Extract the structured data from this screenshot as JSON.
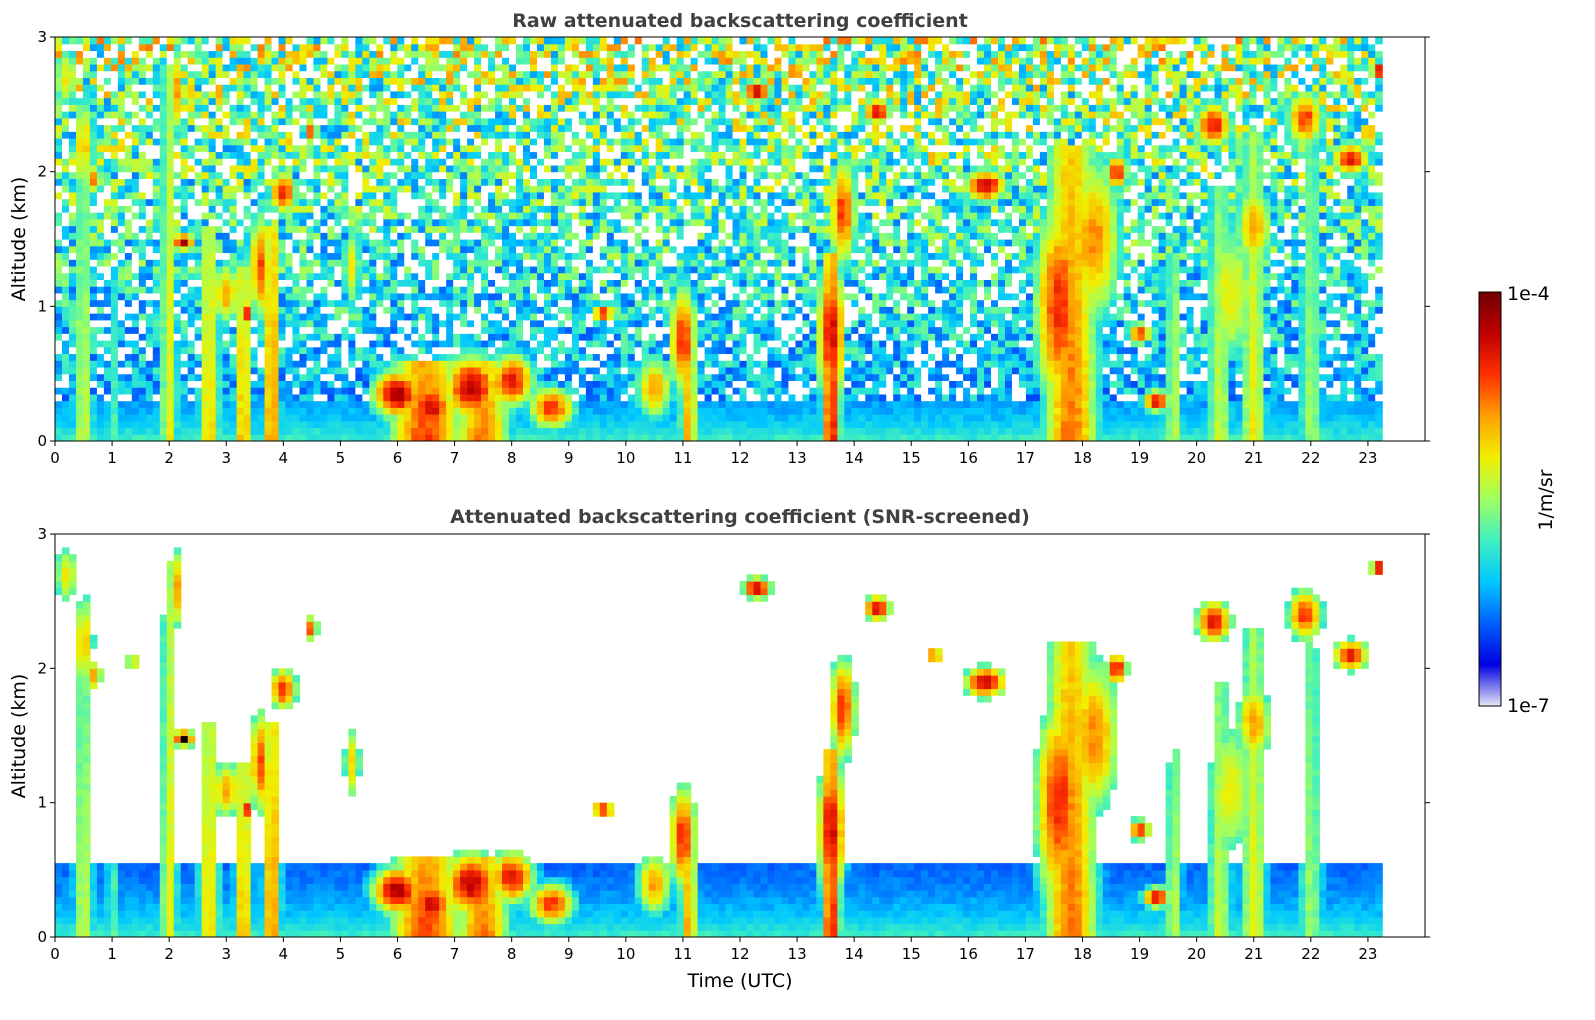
{
  "colorbar": {
    "label": "1/m/sr",
    "max_label": "1e-4",
    "min_label": "1e-7",
    "colormap": [
      "#e6e6f5",
      "#0000e0",
      "#0060ff",
      "#00c8ff",
      "#40f0c0",
      "#a0ff60",
      "#f0f000",
      "#ffa000",
      "#ff3000",
      "#c00000",
      "#700000"
    ]
  },
  "xaxis": {
    "label": "Time (UTC)"
  },
  "chart_data": [
    {
      "type": "heatmap",
      "title": "Raw attenuated backscattering coefficient",
      "xlabel": "",
      "ylabel": "Altitude (km)",
      "xlim": [
        0,
        24
      ],
      "ylim": [
        0,
        3
      ],
      "xticks": [
        "0",
        "1",
        "2",
        "3",
        "4",
        "5",
        "6",
        "7",
        "8",
        "9",
        "10",
        "11",
        "12",
        "13",
        "14",
        "15",
        "16",
        "17",
        "18",
        "19",
        "20",
        "21",
        "22",
        "23"
      ],
      "yticks": [
        "0",
        "1",
        "2",
        "3"
      ],
      "data_end_hour": 23.25,
      "color_scale": "log",
      "clim": [
        "1e-7",
        "1e-4"
      ],
      "snr_screened": false
    },
    {
      "type": "heatmap",
      "title": "Attenuated backscattering coefficient (SNR-screened)",
      "xlabel": "Time (UTC)",
      "ylabel": "Altitude (km)",
      "xlim": [
        0,
        24
      ],
      "ylim": [
        0,
        3
      ],
      "xticks": [
        "0",
        "1",
        "2",
        "3",
        "4",
        "5",
        "6",
        "7",
        "8",
        "9",
        "10",
        "11",
        "12",
        "13",
        "14",
        "15",
        "16",
        "17",
        "18",
        "19",
        "20",
        "21",
        "22",
        "23"
      ],
      "yticks": [
        "0",
        "1",
        "2",
        "3"
      ],
      "data_end_hour": 23.25,
      "color_scale": "log",
      "clim": [
        "1e-7",
        "1e-4"
      ],
      "snr_screened": true
    }
  ]
}
